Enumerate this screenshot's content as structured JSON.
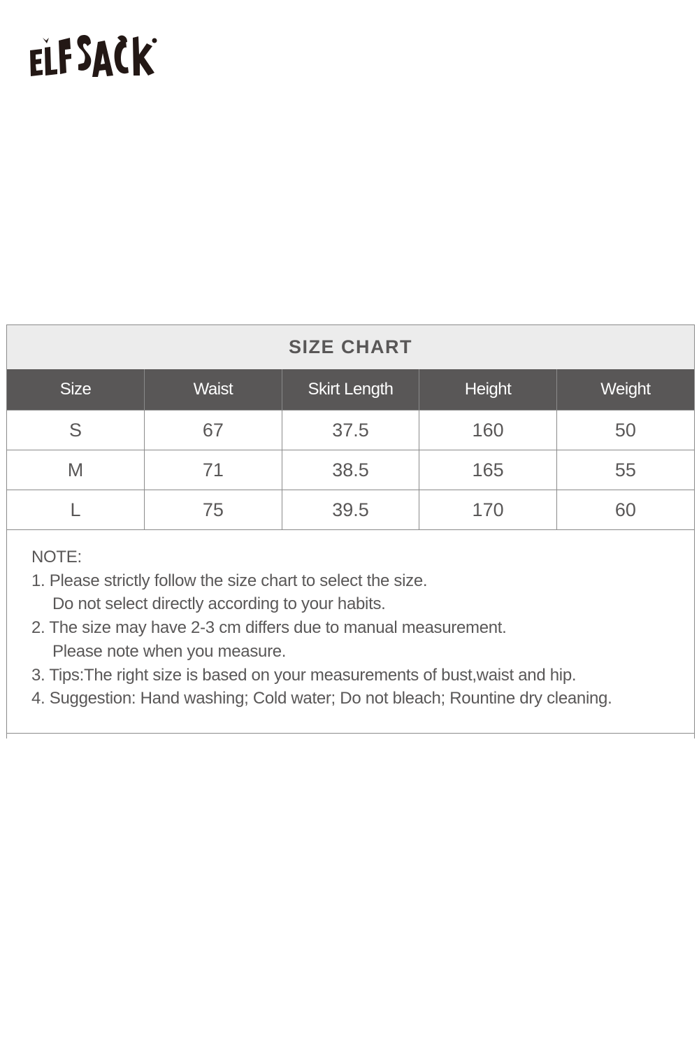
{
  "brand": {
    "logo_text": "ELFSACK"
  },
  "size_chart": {
    "title": "SIZE CHART",
    "columns": [
      "Size",
      "Waist",
      "Skirt Length",
      "Height",
      "Weight"
    ],
    "rows": [
      [
        "S",
        "67",
        "37.5",
        "160",
        "50"
      ],
      [
        "M",
        "71",
        "38.5",
        "165",
        "55"
      ],
      [
        "L",
        "75",
        "39.5",
        "170",
        "60"
      ]
    ],
    "header_bg": "#595757",
    "title_bg": "#ececec"
  },
  "notes": {
    "heading": "NOTE:",
    "lines": [
      "1. Please strictly follow the size chart to select the size.",
      "Do not select directly according to your habits.",
      "2. The size may have 2-3 cm differs due to manual measurement.",
      "Please note when you measure.",
      "3. Tips:The right size is based on your measurements of bust,waist and hip.",
      "4. Suggestion: Hand washing; Cold water; Do not bleach; Rountine dry cleaning."
    ]
  }
}
